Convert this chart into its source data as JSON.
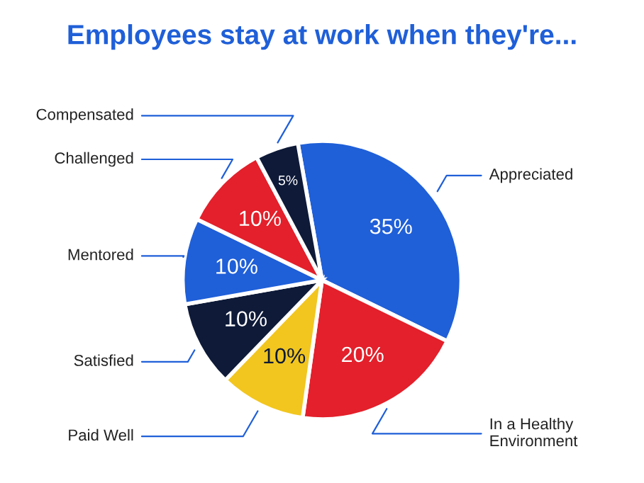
{
  "chart_data": {
    "type": "pie",
    "title": "Employees stay at work when they're...",
    "categories": [
      "Appreciated",
      "In a Healthy Environment",
      "Paid Well",
      "Satisfied",
      "Mentored",
      "Challenged",
      "Compensated"
    ],
    "values": [
      35,
      20,
      10,
      10,
      10,
      10,
      5
    ],
    "value_labels": [
      "35%",
      "20%",
      "10%",
      "10%",
      "10%",
      "10%",
      "5%"
    ],
    "colors": [
      "#1f5fd8",
      "#e3202b",
      "#f2c61f",
      "#0e1a38",
      "#1f5fd8",
      "#e3202b",
      "#0e1a38"
    ],
    "legend": false
  }
}
